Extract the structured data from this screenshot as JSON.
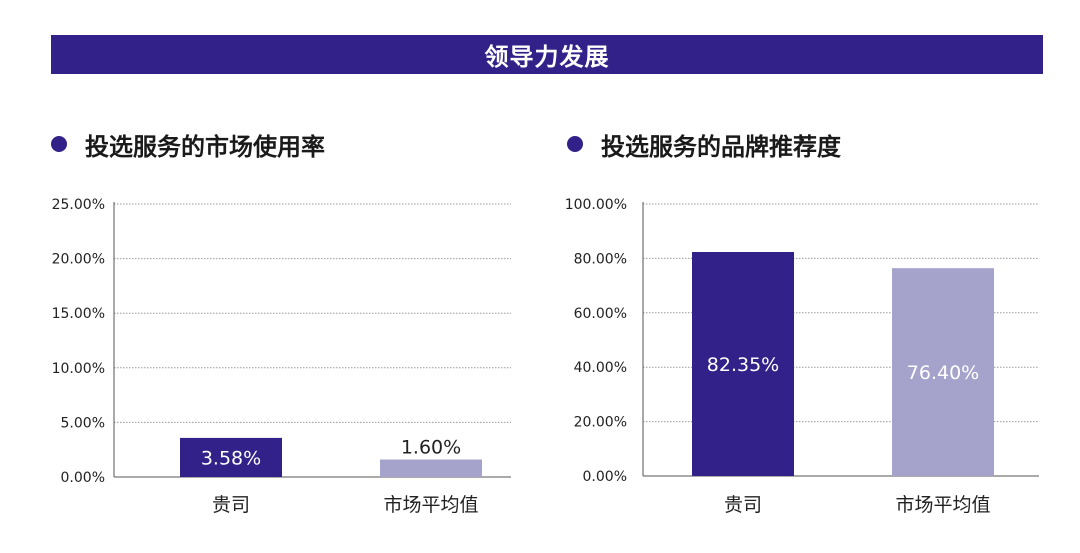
{
  "banner": {
    "title": "领导力发展"
  },
  "colors": {
    "primary": "#33218a",
    "secondary": "#a5a3cb"
  },
  "chart_data": [
    {
      "type": "bar",
      "title": "投选服务的市场使用率",
      "categories": [
        "贵司",
        "市场平均值"
      ],
      "values": [
        3.58,
        1.6
      ],
      "value_labels": [
        "3.58%",
        "1.60%"
      ],
      "label_positions": [
        "inside",
        "above"
      ],
      "yticks": [
        "0.00%",
        "5.00%",
        "10.00%",
        "15.00%",
        "20.00%",
        "25.00%"
      ],
      "ylim": [
        0,
        25
      ],
      "xlabel": "",
      "ylabel": "",
      "grid": true
    },
    {
      "type": "bar",
      "title": "投选服务的品牌推荐度",
      "categories": [
        "贵司",
        "市场平均值"
      ],
      "values": [
        82.35,
        76.4
      ],
      "value_labels": [
        "82.35%",
        "76.40%"
      ],
      "label_positions": [
        "inside",
        "inside"
      ],
      "yticks": [
        "0.00%",
        "20.00%",
        "40.00%",
        "60.00%",
        "80.00%",
        "100.00%"
      ],
      "ylim": [
        0,
        100
      ],
      "xlabel": "",
      "ylabel": "",
      "grid": true
    }
  ]
}
